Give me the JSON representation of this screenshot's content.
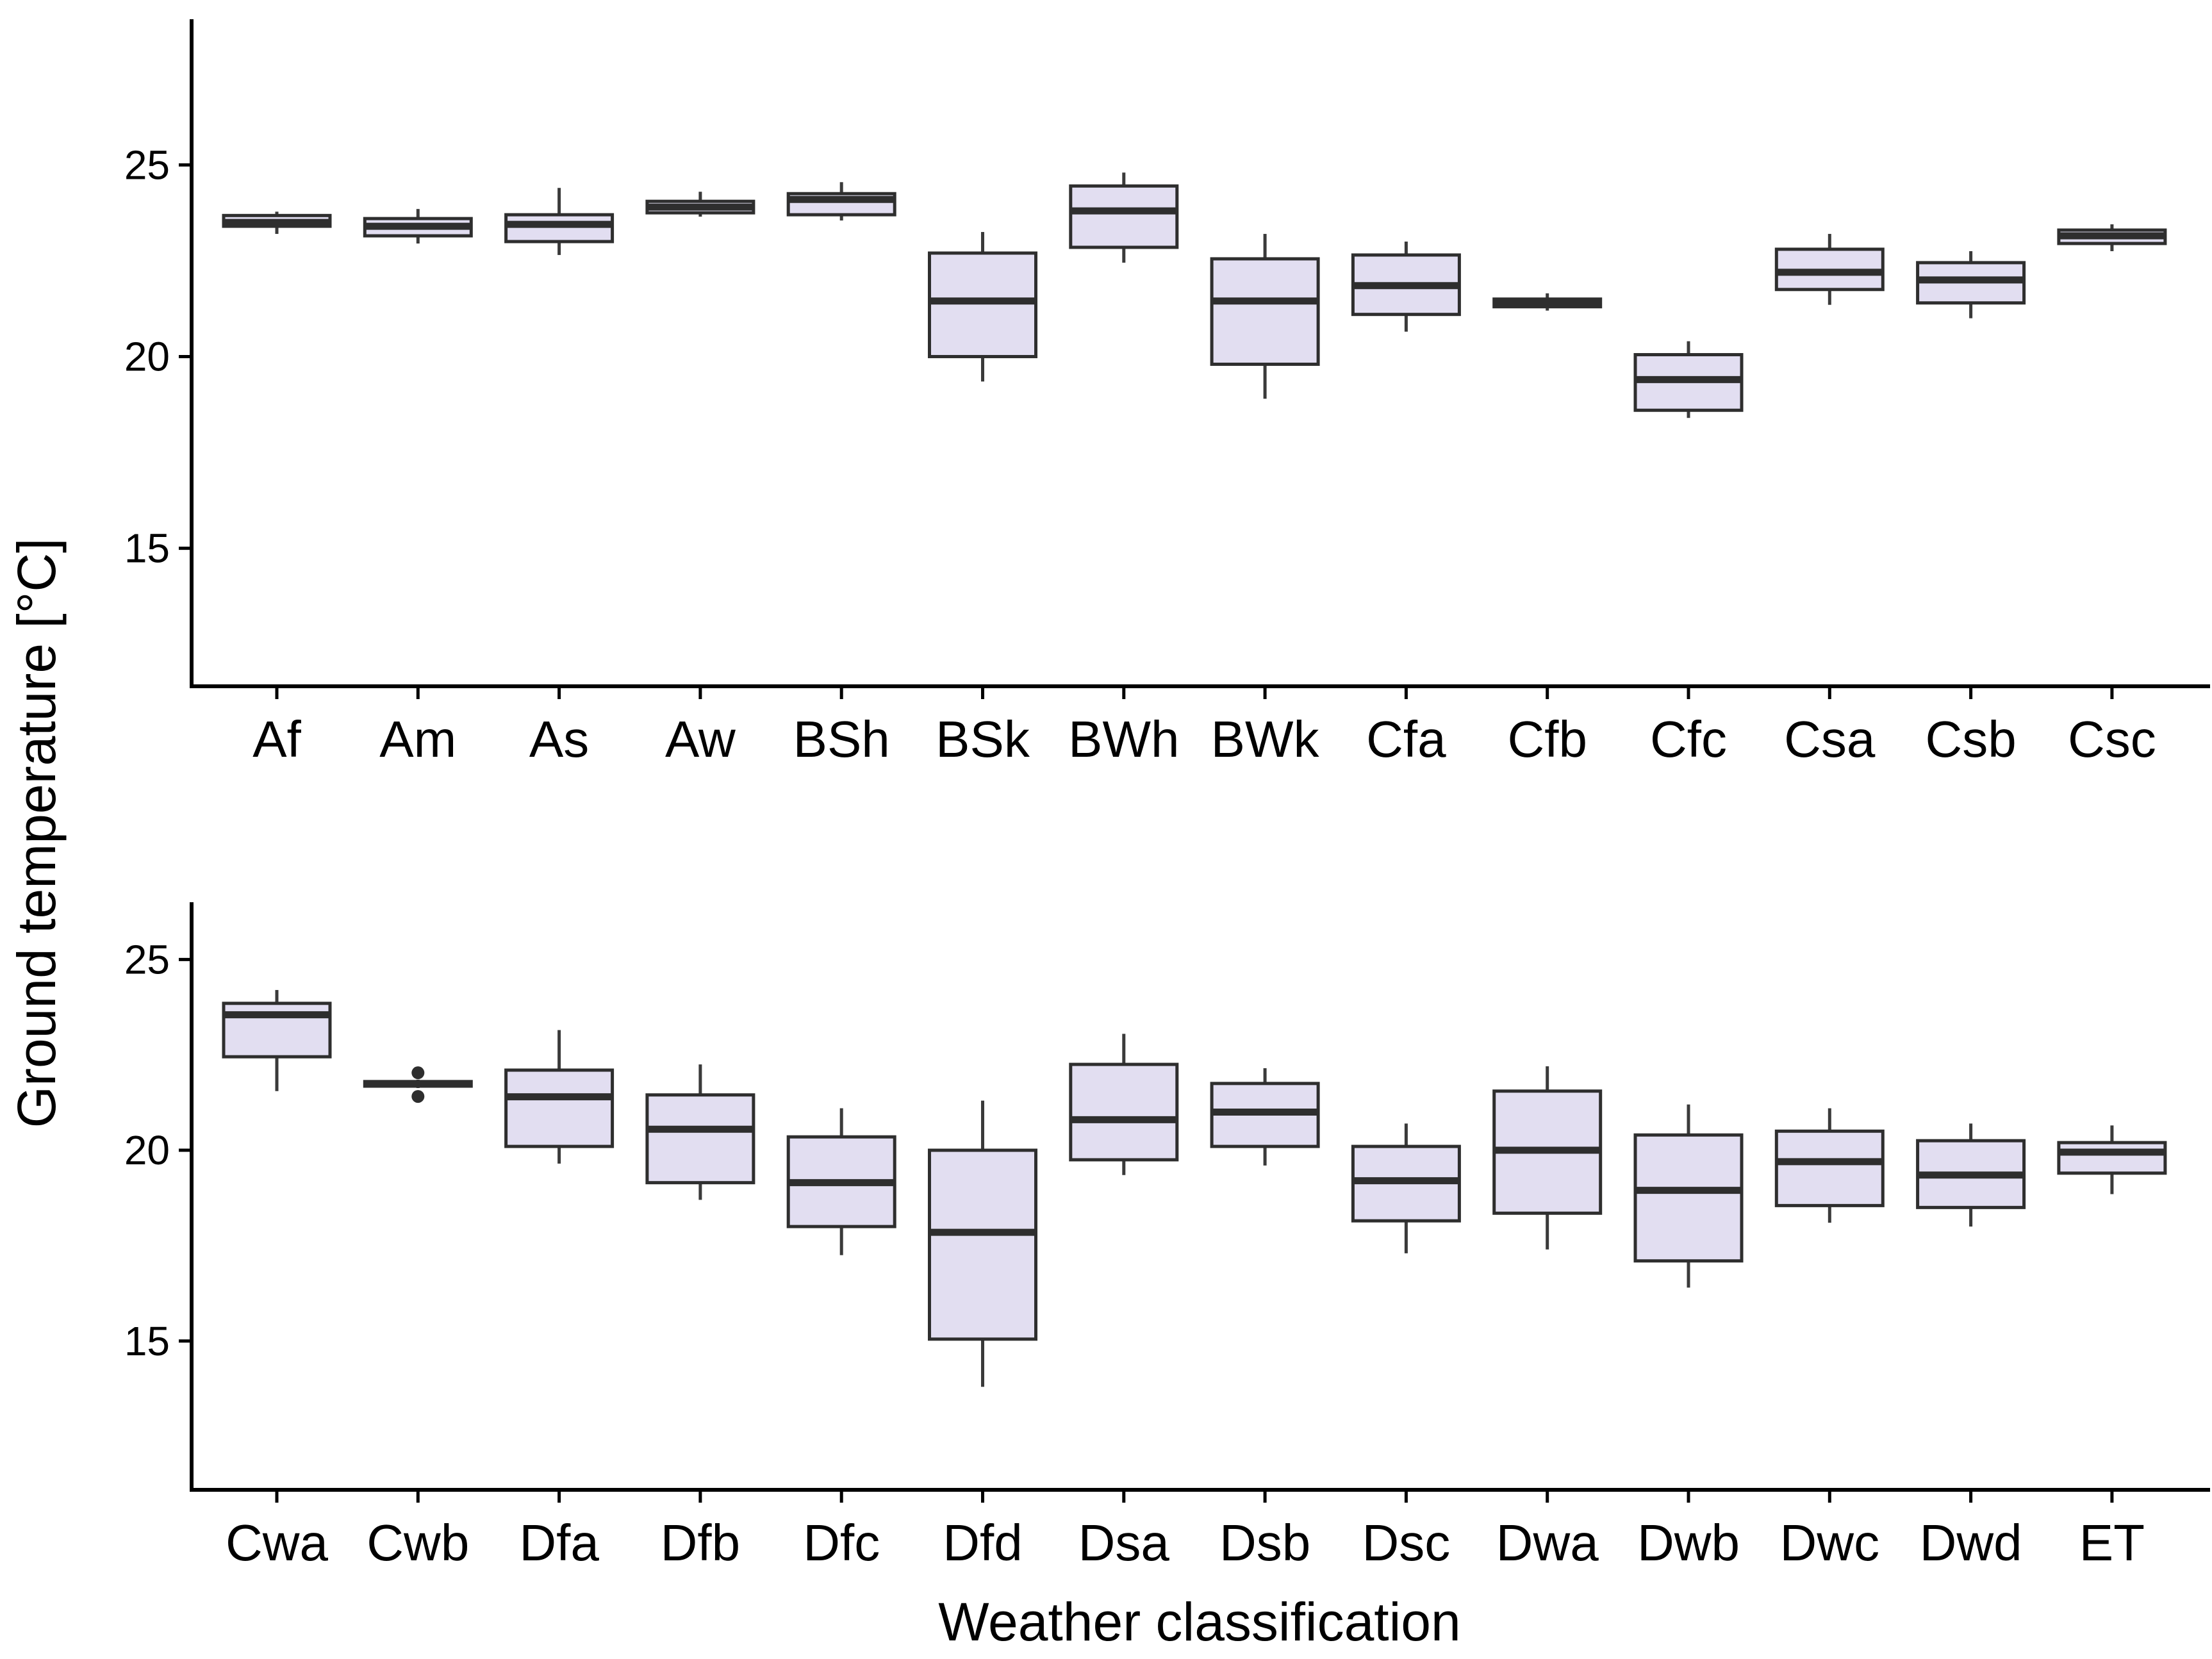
{
  "y_axis": {
    "title": "Ground temperature [°C]"
  },
  "x_axis": {
    "title": "Weather classification"
  },
  "chart_data": {
    "type": "boxplot",
    "title": "",
    "xlabel": "Weather classification",
    "ylabel": "Ground temperature [°C]",
    "grid": false,
    "legend": "none",
    "style": {
      "box_fill": "#E2DEF1",
      "box_stroke": "#2E2E2E",
      "median_stroke": "#2E2E2E",
      "whisker_stroke": "#3A3A3A",
      "outlier_fill": "#2E2E2E",
      "axis_color": "#000000",
      "text_color": "#000000",
      "background": "#FFFFFF"
    },
    "panels": [
      {
        "position": "top",
        "yticks": [
          25,
          20,
          15
        ],
        "ytick_labels": [
          "25",
          "20",
          "15"
        ],
        "ylim": [
          11.4,
          28.8
        ],
        "categories": [
          "Af",
          "Am",
          "As",
          "Aw",
          "BSh",
          "BSk",
          "BWh",
          "BWk",
          "Cfa",
          "Cfb",
          "Cfc",
          "Csa",
          "Csb",
          "Csc"
        ],
        "boxes": [
          {
            "label": "Af",
            "whislo": 23.2,
            "q1": 23.4,
            "med": 23.5,
            "q3": 23.68,
            "whishi": 23.78,
            "outliers": []
          },
          {
            "label": "Am",
            "whislo": 22.95,
            "q1": 23.15,
            "med": 23.4,
            "q3": 23.6,
            "whishi": 23.85,
            "outliers": []
          },
          {
            "label": "As",
            "whislo": 22.65,
            "q1": 23.0,
            "med": 23.45,
            "q3": 23.7,
            "whishi": 24.4,
            "outliers": []
          },
          {
            "label": "Aw",
            "whislo": 23.65,
            "q1": 23.75,
            "med": 23.9,
            "q3": 24.05,
            "whishi": 24.3,
            "outliers": []
          },
          {
            "label": "BSh",
            "whislo": 23.55,
            "q1": 23.7,
            "med": 24.1,
            "q3": 24.25,
            "whishi": 24.55,
            "outliers": []
          },
          {
            "label": "BSk",
            "whislo": 19.35,
            "q1": 20.0,
            "med": 21.45,
            "q3": 22.7,
            "whishi": 23.25,
            "outliers": []
          },
          {
            "label": "BWh",
            "whislo": 22.45,
            "q1": 22.85,
            "med": 23.8,
            "q3": 24.45,
            "whishi": 24.8,
            "outliers": []
          },
          {
            "label": "BWk",
            "whislo": 18.9,
            "q1": 19.8,
            "med": 21.45,
            "q3": 22.55,
            "whishi": 23.2,
            "outliers": []
          },
          {
            "label": "Cfa",
            "whislo": 20.65,
            "q1": 21.1,
            "med": 21.85,
            "q3": 22.65,
            "whishi": 23.0,
            "outliers": []
          },
          {
            "label": "Cfb",
            "whislo": 21.2,
            "q1": 21.3,
            "med": 21.4,
            "q3": 21.5,
            "whishi": 21.65,
            "outliers": []
          },
          {
            "label": "Cfc",
            "whislo": 18.4,
            "q1": 18.6,
            "med": 19.4,
            "q3": 20.05,
            "whishi": 20.4,
            "outliers": []
          },
          {
            "label": "Csa",
            "whislo": 21.35,
            "q1": 21.75,
            "med": 22.2,
            "q3": 22.8,
            "whishi": 23.2,
            "outliers": []
          },
          {
            "label": "Csb",
            "whislo": 21.0,
            "q1": 21.4,
            "med": 22.0,
            "q3": 22.45,
            "whishi": 22.75,
            "outliers": []
          },
          {
            "label": "Csc",
            "whislo": 22.75,
            "q1": 22.95,
            "med": 23.15,
            "q3": 23.3,
            "whishi": 23.45,
            "outliers": []
          }
        ]
      },
      {
        "position": "bottom",
        "yticks": [
          25,
          20,
          15
        ],
        "ytick_labels": [
          "25",
          "20",
          "15"
        ],
        "ylim": [
          11.1,
          26.5
        ],
        "categories": [
          "Cwa",
          "Cwb",
          "Dfa",
          "Dfb",
          "Dfc",
          "Dfd",
          "Dsa",
          "Dsb",
          "Dsc",
          "Dwa",
          "Dwb",
          "Dwc",
          "Dwd",
          "ET"
        ],
        "boxes": [
          {
            "label": "Cwa",
            "whislo": 21.55,
            "q1": 22.45,
            "med": 23.55,
            "q3": 23.85,
            "whishi": 24.2,
            "outliers": []
          },
          {
            "label": "Cwb",
            "whislo": 21.63,
            "q1": 21.68,
            "med": 21.74,
            "q3": 21.8,
            "whishi": 21.85,
            "outliers": [
              22.03,
              21.41
            ]
          },
          {
            "label": "Dfa",
            "whislo": 19.65,
            "q1": 20.1,
            "med": 21.4,
            "q3": 22.1,
            "whishi": 23.15,
            "outliers": []
          },
          {
            "label": "Dfb",
            "whislo": 18.7,
            "q1": 19.15,
            "med": 20.55,
            "q3": 21.45,
            "whishi": 22.25,
            "outliers": []
          },
          {
            "label": "Dfc",
            "whislo": 17.25,
            "q1": 18.0,
            "med": 19.15,
            "q3": 20.35,
            "whishi": 21.1,
            "outliers": []
          },
          {
            "label": "Dfd",
            "whislo": 13.8,
            "q1": 15.05,
            "med": 17.85,
            "q3": 20.0,
            "whishi": 21.3,
            "outliers": []
          },
          {
            "label": "Dsa",
            "whislo": 19.35,
            "q1": 19.75,
            "med": 20.8,
            "q3": 22.25,
            "whishi": 23.05,
            "outliers": []
          },
          {
            "label": "Dsb",
            "whislo": 19.6,
            "q1": 20.1,
            "med": 21.0,
            "q3": 21.75,
            "whishi": 22.15,
            "outliers": []
          },
          {
            "label": "Dsc",
            "whislo": 17.3,
            "q1": 18.15,
            "med": 19.2,
            "q3": 20.1,
            "whishi": 20.7,
            "outliers": []
          },
          {
            "label": "Dwa",
            "whislo": 17.4,
            "q1": 18.35,
            "med": 20.0,
            "q3": 21.55,
            "whishi": 22.2,
            "outliers": []
          },
          {
            "label": "Dwb",
            "whislo": 16.4,
            "q1": 17.1,
            "med": 18.95,
            "q3": 20.4,
            "whishi": 21.2,
            "outliers": []
          },
          {
            "label": "Dwc",
            "whislo": 18.1,
            "q1": 18.55,
            "med": 19.7,
            "q3": 20.5,
            "whishi": 21.1,
            "outliers": []
          },
          {
            "label": "Dwd",
            "whislo": 18.0,
            "q1": 18.5,
            "med": 19.35,
            "q3": 20.25,
            "whishi": 20.7,
            "outliers": []
          },
          {
            "label": "ET",
            "whislo": 18.85,
            "q1": 19.4,
            "med": 19.95,
            "q3": 20.2,
            "whishi": 20.65,
            "outliers": []
          }
        ]
      }
    ]
  }
}
